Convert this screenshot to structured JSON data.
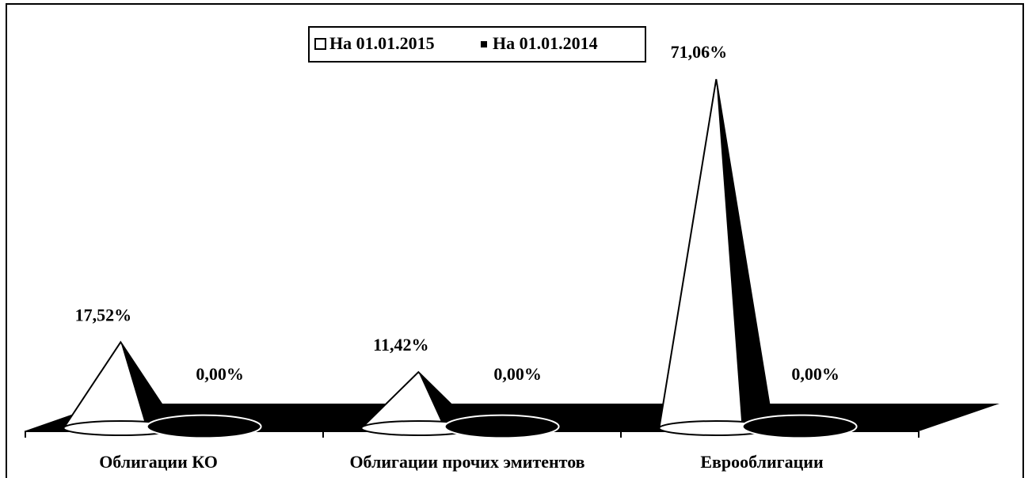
{
  "chart_data": {
    "type": "cone",
    "categories": [
      "Облигации КО",
      "Облигации прочих эмитентов",
      "Еврооблигации"
    ],
    "series": [
      {
        "name": "На 01.01.2015",
        "color": "#ffffff",
        "values": [
          17.52,
          11.42,
          71.06
        ],
        "value_labels": [
          "17,52%",
          "11,42%",
          "71,06%"
        ]
      },
      {
        "name": "На 01.01.2014",
        "color": "#000000",
        "values": [
          0,
          0,
          0
        ],
        "value_labels": [
          "0,00%",
          "0,00%",
          "0,00%"
        ]
      }
    ],
    "legend": "top"
  }
}
